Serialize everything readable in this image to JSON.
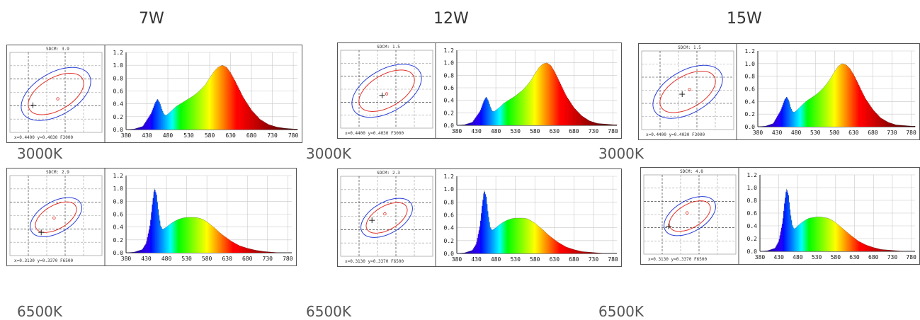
{
  "columns": [
    {
      "power": "7W"
    },
    {
      "power": "12W"
    },
    {
      "power": "15W"
    }
  ],
  "rows": [
    {
      "cct_label": "3000K"
    },
    {
      "cct_label": "6500K"
    }
  ],
  "panels": [
    {
      "sdcm_label": "SDCM:",
      "sdcm": "3.9",
      "footer": "x=0.4400 y=0.4030 F3000",
      "cross": [
        0.25,
        0.66
      ],
      "dot": [
        0.52,
        0.58
      ]
    },
    {
      "sdcm_label": "SDCM:",
      "sdcm": "1.5",
      "footer": "x=0.4400 y=0.4030 F3000",
      "cross": [
        0.45,
        0.58
      ],
      "dot": [
        0.5,
        0.56
      ]
    },
    {
      "sdcm_label": "SDCM:",
      "sdcm": "1.5",
      "footer": "x=0.4400 y=0.4030 F3000",
      "cross": [
        0.44,
        0.55
      ],
      "dot": [
        0.52,
        0.49
      ]
    },
    {
      "sdcm_label": "SDCM:",
      "sdcm": "2.9",
      "footer": "x=0.3130 y=0.3370 F6500",
      "cross": [
        0.34,
        0.71
      ],
      "dot": [
        0.48,
        0.53
      ]
    },
    {
      "sdcm_label": "SDCM:",
      "sdcm": "2.3",
      "footer": "x=0.3130 y=0.3370 F6500",
      "cross": [
        0.34,
        0.55
      ],
      "dot": [
        0.48,
        0.47
      ]
    },
    {
      "sdcm_label": "SDCM:",
      "sdcm": "4.8",
      "footer": "x=0.3130 y=0.3370 F6500",
      "cross": [
        0.27,
        0.65
      ],
      "dot": [
        0.47,
        0.48
      ]
    }
  ],
  "chart_data": [
    {
      "type": "area",
      "panel": "7W 3000K",
      "x": [
        380,
        400,
        420,
        440,
        450,
        455,
        460,
        465,
        470,
        475,
        480,
        490,
        500,
        510,
        520,
        530,
        540,
        550,
        560,
        570,
        580,
        590,
        600,
        610,
        620,
        630,
        640,
        650,
        660,
        680,
        700,
        720,
        740,
        760,
        780
      ],
      "values": [
        0.0,
        0.01,
        0.05,
        0.25,
        0.42,
        0.47,
        0.42,
        0.32,
        0.24,
        0.22,
        0.24,
        0.3,
        0.36,
        0.4,
        0.44,
        0.48,
        0.52,
        0.57,
        0.63,
        0.7,
        0.8,
        0.9,
        0.97,
        1.0,
        0.97,
        0.88,
        0.76,
        0.63,
        0.5,
        0.3,
        0.16,
        0.08,
        0.04,
        0.02,
        0.01
      ],
      "xlim": [
        380,
        790
      ],
      "ylim": [
        0,
        1.2
      ],
      "x_ticks": [
        380,
        430,
        480,
        530,
        580,
        630,
        680,
        730,
        780
      ],
      "y_ticks": [
        "0.0",
        "0.2",
        "0.4",
        "0.6",
        "0.8",
        "1.0",
        "1.2"
      ],
      "grid": true
    },
    {
      "type": "area",
      "panel": "12W 3000K",
      "x": [
        380,
        400,
        420,
        440,
        450,
        455,
        460,
        465,
        470,
        475,
        480,
        490,
        500,
        510,
        520,
        530,
        540,
        550,
        560,
        570,
        580,
        590,
        600,
        610,
        620,
        630,
        640,
        650,
        660,
        680,
        700,
        720,
        740,
        760,
        780
      ],
      "values": [
        0.0,
        0.01,
        0.05,
        0.23,
        0.4,
        0.45,
        0.4,
        0.3,
        0.23,
        0.22,
        0.24,
        0.29,
        0.35,
        0.39,
        0.43,
        0.47,
        0.52,
        0.57,
        0.64,
        0.72,
        0.82,
        0.92,
        0.98,
        1.0,
        0.96,
        0.86,
        0.73,
        0.6,
        0.47,
        0.28,
        0.15,
        0.07,
        0.03,
        0.02,
        0.01
      ],
      "xlim": [
        380,
        790
      ],
      "ylim": [
        0,
        1.2
      ],
      "x_ticks": [
        380,
        430,
        480,
        530,
        580,
        630,
        680,
        730,
        780
      ],
      "y_ticks": [
        "0.0",
        "0.2",
        "0.4",
        "0.6",
        "0.8",
        "1.0",
        "1.2"
      ],
      "grid": true
    },
    {
      "type": "area",
      "panel": "15W 3000K",
      "x": [
        380,
        400,
        420,
        440,
        450,
        455,
        460,
        465,
        470,
        475,
        480,
        490,
        500,
        510,
        520,
        530,
        540,
        550,
        560,
        570,
        580,
        590,
        600,
        610,
        620,
        630,
        640,
        650,
        660,
        680,
        700,
        720,
        740,
        760,
        780
      ],
      "values": [
        0.0,
        0.01,
        0.05,
        0.26,
        0.43,
        0.47,
        0.42,
        0.31,
        0.24,
        0.23,
        0.25,
        0.31,
        0.37,
        0.42,
        0.46,
        0.5,
        0.55,
        0.61,
        0.68,
        0.77,
        0.87,
        0.96,
        1.0,
        0.98,
        0.92,
        0.82,
        0.7,
        0.57,
        0.45,
        0.27,
        0.14,
        0.07,
        0.03,
        0.02,
        0.01
      ],
      "xlim": [
        380,
        790
      ],
      "ylim": [
        0,
        1.2
      ],
      "x_ticks": [
        380,
        430,
        480,
        530,
        580,
        630,
        680,
        730,
        780
      ],
      "y_ticks": [
        "0.0",
        "0.2",
        "0.4",
        "0.6",
        "0.8",
        "1.0",
        "1.2"
      ],
      "grid": true
    },
    {
      "type": "area",
      "panel": "7W 6500K",
      "x": [
        380,
        400,
        420,
        430,
        440,
        445,
        450,
        455,
        460,
        465,
        470,
        475,
        480,
        490,
        500,
        510,
        520,
        530,
        540,
        550,
        560,
        570,
        580,
        590,
        600,
        610,
        620,
        640,
        660,
        680,
        700,
        720,
        740,
        760,
        780
      ],
      "values": [
        0.0,
        0.01,
        0.05,
        0.15,
        0.45,
        0.75,
        1.0,
        0.9,
        0.62,
        0.42,
        0.36,
        0.38,
        0.4,
        0.45,
        0.49,
        0.52,
        0.54,
        0.55,
        0.55,
        0.55,
        0.54,
        0.52,
        0.48,
        0.43,
        0.38,
        0.32,
        0.27,
        0.18,
        0.11,
        0.07,
        0.04,
        0.02,
        0.01,
        0.0,
        0.0
      ],
      "xlim": [
        380,
        790
      ],
      "ylim": [
        0,
        1.2
      ],
      "x_ticks": [
        380,
        430,
        480,
        530,
        580,
        630,
        680,
        730,
        780
      ],
      "y_ticks": [
        "0.0",
        "0.2",
        "0.4",
        "0.6",
        "0.8",
        "1.0",
        "1.2"
      ],
      "grid": true
    },
    {
      "type": "area",
      "panel": "12W 6500K",
      "x": [
        380,
        400,
        420,
        430,
        440,
        445,
        450,
        455,
        460,
        465,
        470,
        475,
        480,
        490,
        500,
        510,
        520,
        530,
        540,
        550,
        560,
        570,
        580,
        590,
        600,
        610,
        620,
        640,
        660,
        680,
        700,
        720,
        740,
        760,
        780
      ],
      "values": [
        0.0,
        0.01,
        0.05,
        0.15,
        0.45,
        0.74,
        0.98,
        0.88,
        0.6,
        0.41,
        0.36,
        0.38,
        0.4,
        0.45,
        0.49,
        0.52,
        0.54,
        0.55,
        0.55,
        0.55,
        0.54,
        0.51,
        0.47,
        0.42,
        0.37,
        0.31,
        0.26,
        0.17,
        0.1,
        0.06,
        0.03,
        0.02,
        0.01,
        0.0,
        0.0
      ],
      "xlim": [
        380,
        790
      ],
      "ylim": [
        0,
        1.2
      ],
      "x_ticks": [
        380,
        430,
        480,
        530,
        580,
        630,
        680,
        730,
        780
      ],
      "y_ticks": [
        "0.0",
        "0.2",
        "0.4",
        "0.6",
        "0.8",
        "1.0",
        "1.2"
      ],
      "grid": true
    },
    {
      "type": "area",
      "panel": "15W 6500K",
      "x": [
        380,
        400,
        420,
        430,
        440,
        445,
        450,
        455,
        460,
        465,
        470,
        475,
        480,
        490,
        500,
        510,
        520,
        530,
        540,
        550,
        560,
        570,
        580,
        590,
        600,
        610,
        620,
        640,
        660,
        680,
        700,
        720,
        740,
        760,
        780
      ],
      "values": [
        0.0,
        0.01,
        0.05,
        0.16,
        0.46,
        0.75,
        0.98,
        0.88,
        0.6,
        0.41,
        0.35,
        0.37,
        0.4,
        0.45,
        0.49,
        0.52,
        0.53,
        0.54,
        0.54,
        0.53,
        0.52,
        0.49,
        0.45,
        0.4,
        0.35,
        0.3,
        0.25,
        0.16,
        0.1,
        0.06,
        0.03,
        0.02,
        0.01,
        0.0,
        0.0
      ],
      "xlim": [
        380,
        790
      ],
      "ylim": [
        0,
        1.2
      ],
      "x_ticks": [
        380,
        430,
        480,
        530,
        580,
        630,
        680,
        730,
        780
      ],
      "y_ticks": [
        "0.0",
        "0.2",
        "0.4",
        "0.6",
        "0.8",
        "1.0",
        "1.2"
      ],
      "grid": true
    }
  ]
}
